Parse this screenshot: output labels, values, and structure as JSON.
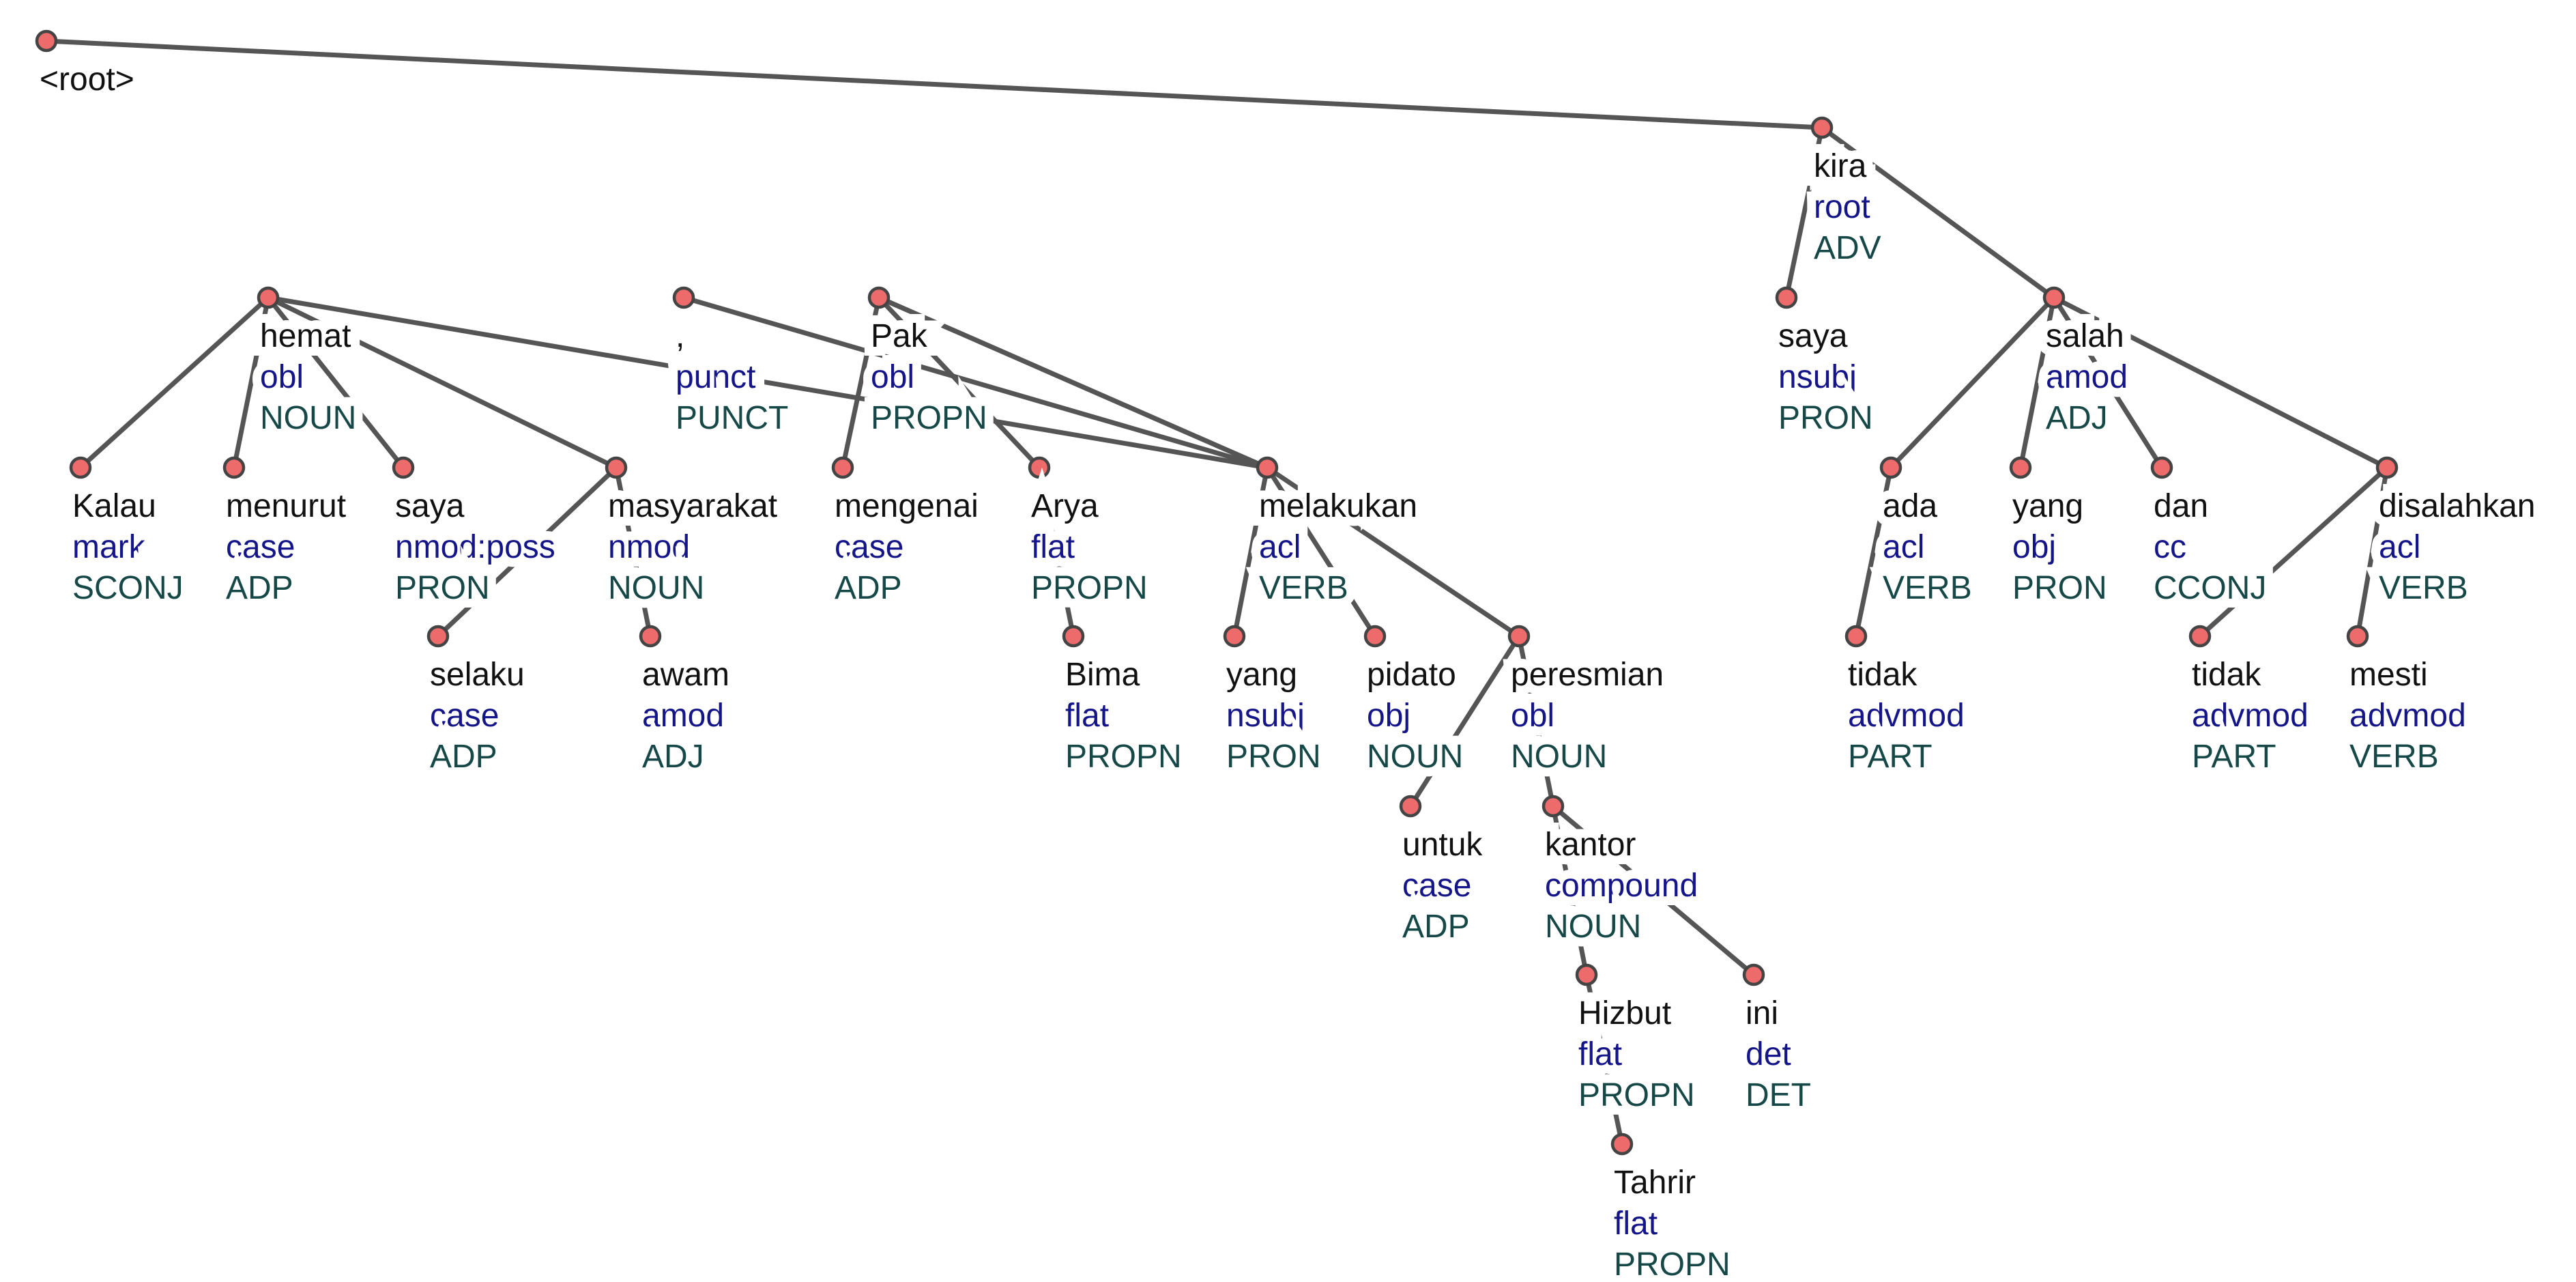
{
  "root_label": "<root>",
  "colors": {
    "node_fill": "#ee6b6b",
    "edge": "#555555",
    "form": "#111111",
    "deprel": "#15158a",
    "upos": "#174848"
  },
  "tokens": [
    {
      "id": 1,
      "form": "Kalau",
      "deprel": "mark",
      "upos": "SCONJ",
      "head": 2
    },
    {
      "id": 2,
      "form": "hemat",
      "deprel": "obl",
      "upos": "NOUN",
      "head": 13
    },
    {
      "id": 3,
      "form": "menurut",
      "deprel": "case",
      "upos": "ADP",
      "head": 2
    },
    {
      "id": 4,
      "form": "saya",
      "deprel": "nmod:poss",
      "upos": "PRON",
      "head": 2
    },
    {
      "id": 5,
      "form": "selaku",
      "deprel": "case",
      "upos": "ADP",
      "head": 6
    },
    {
      "id": 6,
      "form": "masyarakat",
      "deprel": "nmod",
      "upos": "NOUN",
      "head": 2
    },
    {
      "id": 7,
      "form": "awam",
      "deprel": "amod",
      "upos": "ADJ",
      "head": 6
    },
    {
      "id": 8,
      "form": ",",
      "deprel": "punct",
      "upos": "PUNCT",
      "head": 13
    },
    {
      "id": 9,
      "form": "Pak",
      "deprel": "obl",
      "upos": "PROPN",
      "head": 13
    },
    {
      "id": 10,
      "form": "mengenai",
      "deprel": "case",
      "upos": "ADP",
      "head": 9
    },
    {
      "id": 11,
      "form": "Arya",
      "deprel": "flat",
      "upos": "PROPN",
      "head": 9
    },
    {
      "id": 12,
      "form": "Bima",
      "deprel": "flat",
      "upos": "PROPN",
      "head": 11
    },
    {
      "id": 13,
      "form": "melakukan",
      "deprel": "acl",
      "upos": "VERB",
      "head": 9
    },
    {
      "id": 14,
      "form": "yang",
      "deprel": "nsubj",
      "upos": "PRON",
      "head": 13
    },
    {
      "id": 15,
      "form": "pidato",
      "deprel": "obj",
      "upos": "NOUN",
      "head": 13
    },
    {
      "id": 16,
      "form": "untuk",
      "deprel": "case",
      "upos": "ADP",
      "head": 17
    },
    {
      "id": 17,
      "form": "peresmian",
      "deprel": "obl",
      "upos": "NOUN",
      "head": 13
    },
    {
      "id": 18,
      "form": "kantor",
      "deprel": "compound",
      "upos": "NOUN",
      "head": 17
    },
    {
      "id": 19,
      "form": "Hizbut",
      "deprel": "flat",
      "upos": "PROPN",
      "head": 18
    },
    {
      "id": 20,
      "form": "Tahrir",
      "deprel": "flat",
      "upos": "PROPN",
      "head": 19
    },
    {
      "id": 21,
      "form": "ini",
      "deprel": "det",
      "upos": "DET",
      "head": 18
    },
    {
      "id": 22,
      "form": "saya",
      "deprel": "nsubj",
      "upos": "PRON",
      "head": 23
    },
    {
      "id": 23,
      "form": "kira",
      "deprel": "root",
      "upos": "ADV",
      "head": 0
    },
    {
      "id": 24,
      "form": "ada",
      "deprel": "acl",
      "upos": "VERB",
      "head": 26
    },
    {
      "id": 25,
      "form": "tidak",
      "deprel": "advmod",
      "upos": "PART",
      "head": 24
    },
    {
      "id": 26,
      "form": "salah",
      "deprel": "amod",
      "upos": "ADJ",
      "head": 23
    },
    {
      "id": 27,
      "form": "yang",
      "deprel": "obj",
      "upos": "PRON",
      "head": 26
    },
    {
      "id": 28,
      "form": "dan",
      "deprel": "cc",
      "upos": "CCONJ",
      "head": 26
    },
    {
      "id": 29,
      "form": "tidak",
      "deprel": "advmod",
      "upos": "PART",
      "head": 30
    },
    {
      "id": 30,
      "form": "disalahkan",
      "deprel": "acl",
      "upos": "VERB",
      "head": 26
    },
    {
      "id": 31,
      "form": "mesti",
      "deprel": "advmod",
      "upos": "VERB",
      "head": 30
    }
  ]
}
